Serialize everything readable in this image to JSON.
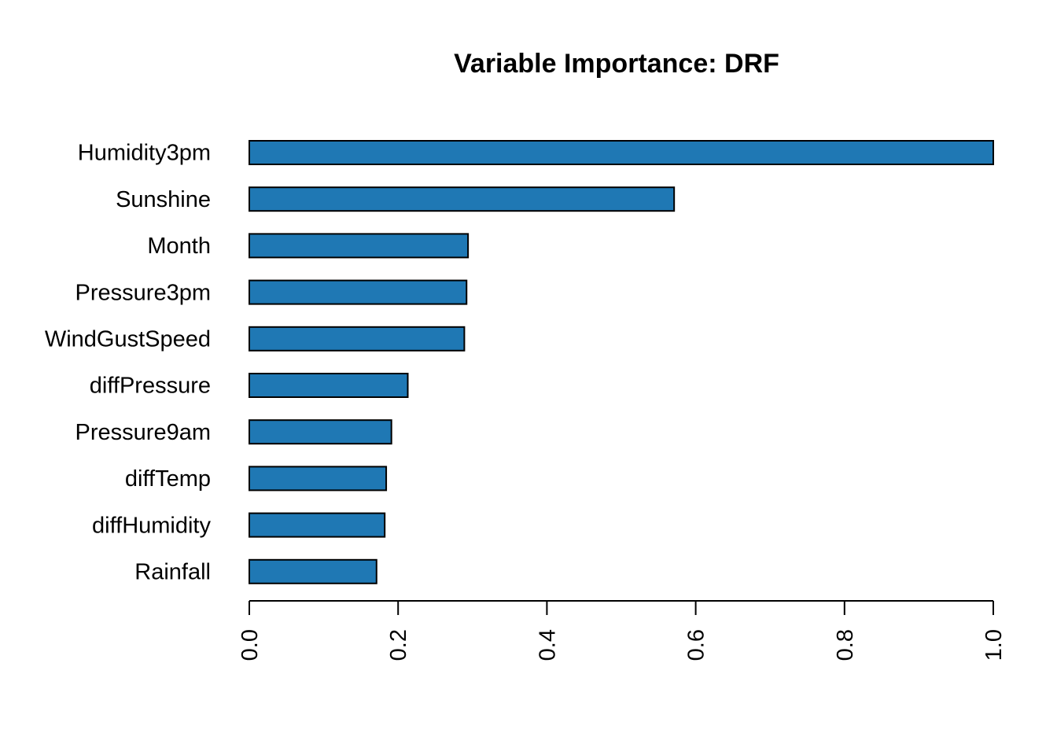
{
  "chart_data": {
    "type": "bar",
    "orientation": "horizontal",
    "title": "Variable Importance: DRF",
    "xlabel": "",
    "ylabel": "",
    "categories": [
      "Humidity3pm",
      "Sunshine",
      "Month",
      "Pressure3pm",
      "WindGustSpeed",
      "diffPressure",
      "Pressure9am",
      "diffTemp",
      "diffHumidity",
      "Rainfall"
    ],
    "values": [
      1.0,
      0.571,
      0.294,
      0.292,
      0.289,
      0.213,
      0.191,
      0.184,
      0.182,
      0.171
    ],
    "xlim": [
      0,
      1
    ],
    "xticks": [
      "0.0",
      "0.2",
      "0.4",
      "0.6",
      "0.8",
      "1.0"
    ],
    "grid": false,
    "legend": "none",
    "bar_color": "#1F78B4",
    "edge_color": "#000000"
  }
}
